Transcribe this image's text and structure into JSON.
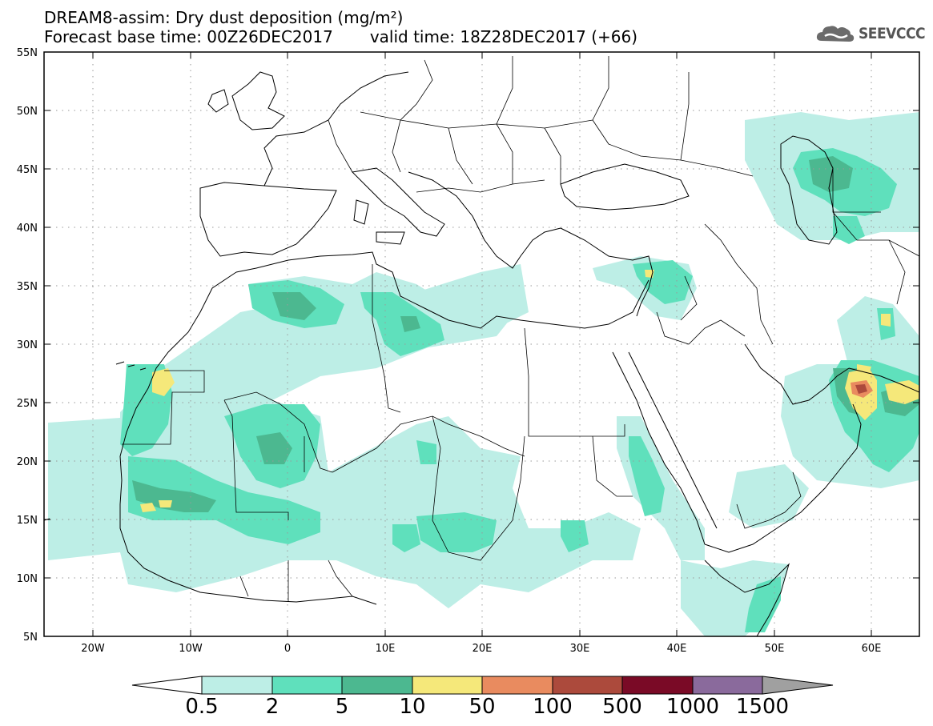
{
  "header": {
    "title": "DREAM8-assim: Dry dust deposition (mg/m²)",
    "base_time": "Forecast base time: 00Z26DEC2017",
    "valid_time": "valid time: 18Z28DEC2017 (+66)"
  },
  "logo": {
    "text": "SEEVCCC",
    "icon": "cloud-icon"
  },
  "map": {
    "region": "North Africa, Europe and Middle East",
    "lon_range": [
      -25,
      65
    ],
    "lat_range": [
      5,
      55
    ],
    "x_ticks": [
      "20W",
      "10W",
      "0",
      "10E",
      "20E",
      "30E",
      "40E",
      "50E",
      "60E"
    ],
    "y_ticks": [
      "55N",
      "50N",
      "45N",
      "40N",
      "35N",
      "30N",
      "25N",
      "20N",
      "15N",
      "10N",
      "5N"
    ]
  },
  "colorbar": {
    "labels": [
      "0.5",
      "2",
      "5",
      "10",
      "50",
      "100",
      "500",
      "1000",
      "1500"
    ],
    "colors": [
      "#ffffff",
      "#bdeee6",
      "#5fe0bc",
      "#4cb890",
      "#f5e87a",
      "#e98b5f",
      "#ac4a3c",
      "#7a0a26",
      "#8a6a9c",
      "#a0a0a0"
    ]
  }
}
